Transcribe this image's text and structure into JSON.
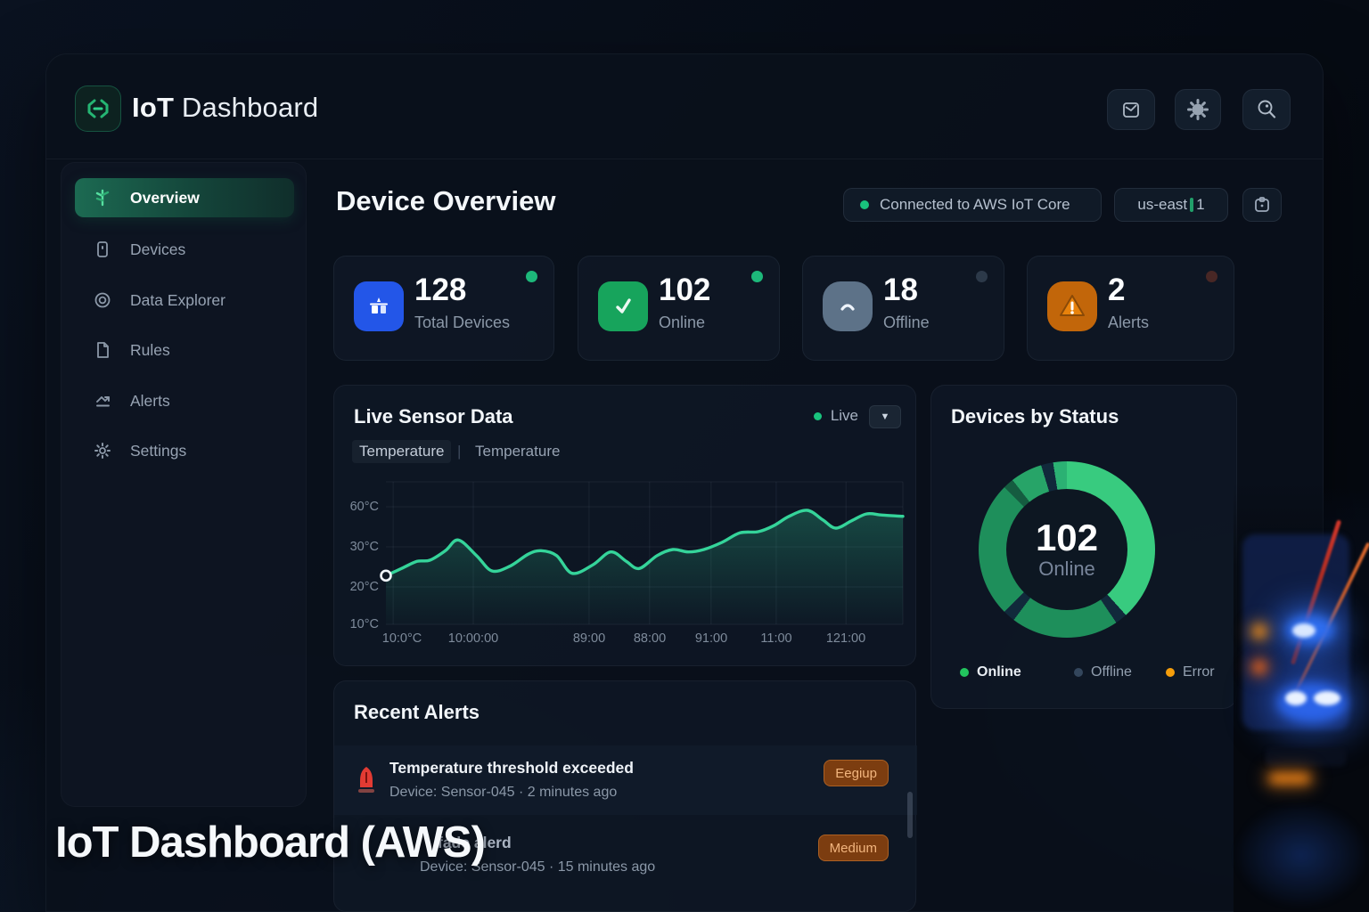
{
  "app": {
    "brand_bold": "IoT",
    "brand_rest": " Dashboard",
    "caption": "IoT Dashboard (AWS)"
  },
  "sidebar": {
    "items": [
      {
        "label": "Overview",
        "active": true
      },
      {
        "label": "Devices",
        "active": false
      },
      {
        "label": "Data Explorer",
        "active": false
      },
      {
        "label": "Rules",
        "active": false
      },
      {
        "label": "Alerts",
        "active": false
      },
      {
        "label": "Settings",
        "active": false
      }
    ]
  },
  "page": {
    "title": "Device Overview",
    "connection_status": "Connected to AWS IoT Core",
    "region_prefix": "us-east",
    "region_suffix": "1"
  },
  "stats": [
    {
      "value": "128",
      "label": "Total Devices",
      "tile_color": "#2356e8",
      "dot_color": "#1db87a"
    },
    {
      "value": "102",
      "label": "Online",
      "tile_color": "#17a45c",
      "dot_color": "#1db87a"
    },
    {
      "value": "18",
      "label": "Offline",
      "tile_color": "#5d7288",
      "dot_color": "rgba(82,99,120,0.45)"
    },
    {
      "value": "2",
      "label": "Alerts",
      "tile_color": "#c2660a",
      "dot_color": "rgba(160,64,40,0.4)"
    }
  ],
  "sensor_panel": {
    "title": "Live Sensor Data",
    "live_label": "Live",
    "dropdown_glyph": "▼",
    "tab_1": "Temperature",
    "tab_separator": "|",
    "tab_2": "Temperature"
  },
  "chart_data": {
    "type": "line",
    "title": "Live Sensor Data",
    "series_name": "Temperature",
    "unit": "°C",
    "ylim": [
      10,
      70
    ],
    "grid": true,
    "y_labels": [
      "60°C",
      "30°C",
      "20°C",
      "10°C"
    ],
    "x_labels": [
      "10:0°C",
      "10:00:00",
      "89:00",
      "88:00",
      "91:00",
      "11:00",
      "121:00"
    ],
    "x_ticks_f": [
      0.014,
      0.169,
      0.393,
      0.51,
      0.629,
      0.755,
      0.89
    ],
    "series": [
      {
        "name": "Temperature",
        "points": [
          [
            0.0,
            30.5
          ],
          [
            0.03,
            33.5
          ],
          [
            0.06,
            36.5
          ],
          [
            0.085,
            37.0
          ],
          [
            0.115,
            41.0
          ],
          [
            0.14,
            45.5
          ],
          [
            0.175,
            39.0
          ],
          [
            0.205,
            32.5
          ],
          [
            0.24,
            34.5
          ],
          [
            0.275,
            39.5
          ],
          [
            0.3,
            41.0
          ],
          [
            0.33,
            39.0
          ],
          [
            0.36,
            31.5
          ],
          [
            0.4,
            35.0
          ],
          [
            0.435,
            40.5
          ],
          [
            0.465,
            36.5
          ],
          [
            0.49,
            33.5
          ],
          [
            0.525,
            39.0
          ],
          [
            0.555,
            41.5
          ],
          [
            0.585,
            40.5
          ],
          [
            0.615,
            41.5
          ],
          [
            0.65,
            44.5
          ],
          [
            0.685,
            48.5
          ],
          [
            0.72,
            49.0
          ],
          [
            0.75,
            51.5
          ],
          [
            0.78,
            55.5
          ],
          [
            0.815,
            58.0
          ],
          [
            0.845,
            54.0
          ],
          [
            0.87,
            50.5
          ],
          [
            0.9,
            53.5
          ],
          [
            0.93,
            56.5
          ],
          [
            0.96,
            56.0
          ],
          [
            1.0,
            55.5
          ]
        ]
      }
    ],
    "line_color": "#35d49a"
  },
  "status_panel": {
    "title": "Devices by Status",
    "center_value": "102",
    "center_label": "Online",
    "segments": [
      {
        "from": 0,
        "to": 138,
        "color": "#38cb7f"
      },
      {
        "from": 138,
        "to": 146,
        "color": "#11293b"
      },
      {
        "from": 146,
        "to": 217,
        "color": "#1e8f5b"
      },
      {
        "from": 217,
        "to": 225,
        "color": "#11293b"
      },
      {
        "from": 225,
        "to": 315,
        "color": "#1e8f5b"
      },
      {
        "from": 315,
        "to": 322,
        "color": "#155c40"
      },
      {
        "from": 322,
        "to": 343,
        "color": "#27a468"
      },
      {
        "from": 343,
        "to": 351,
        "color": "#11293b"
      },
      {
        "from": 351,
        "to": 360,
        "color": "#2bb173"
      }
    ],
    "legend": [
      {
        "label": "Online",
        "color": "#22c55e"
      },
      {
        "label": "Offline",
        "color": "#33465c"
      },
      {
        "label": "Error",
        "color": "#f59e0b"
      }
    ]
  },
  "alerts_panel": {
    "title": "Recent Alerts",
    "items": [
      {
        "title": "Temperature threshold exceeded",
        "meta": "Device: Sensor-045 · 2 minutes ago",
        "badge": "Eegiup"
      },
      {
        "title": "fade alerd",
        "meta": "Device: Sensor-045 · 15 minutes ago",
        "badge": "Medium"
      }
    ]
  }
}
